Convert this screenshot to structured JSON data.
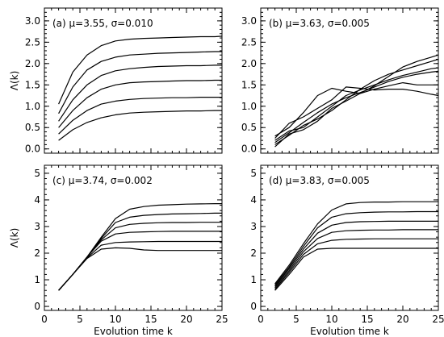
{
  "chart_data": [
    {
      "type": "line",
      "panel": "a",
      "annotation": "(a) μ=3.55, σ=0.010",
      "ylabel": "Λ(k)",
      "xlabel": "",
      "xlim": [
        0,
        25
      ],
      "ylim": [
        -0.1,
        3.3
      ],
      "xticks": [
        0,
        5,
        10,
        15,
        20,
        25
      ],
      "xtick_labels_shown": false,
      "yticks": [
        0.0,
        0.5,
        1.0,
        1.5,
        2.0,
        2.5,
        3.0
      ],
      "ytick_labels": [
        "0.0",
        "0.5",
        "1.0",
        "1.5",
        "2.0",
        "2.5",
        "3.0"
      ],
      "grid": false,
      "x": [
        2,
        4,
        6,
        8,
        10,
        12,
        14,
        16,
        18,
        20,
        22,
        24,
        25
      ],
      "series": [
        {
          "values": [
            1.05,
            1.8,
            2.2,
            2.42,
            2.53,
            2.57,
            2.59,
            2.6,
            2.61,
            2.62,
            2.63,
            2.63,
            2.64
          ]
        },
        {
          "values": [
            0.83,
            1.45,
            1.85,
            2.05,
            2.15,
            2.2,
            2.22,
            2.24,
            2.25,
            2.26,
            2.27,
            2.28,
            2.28
          ]
        },
        {
          "values": [
            0.65,
            1.15,
            1.5,
            1.72,
            1.83,
            1.88,
            1.91,
            1.93,
            1.94,
            1.95,
            1.95,
            1.96,
            1.96
          ]
        },
        {
          "values": [
            0.5,
            0.9,
            1.2,
            1.4,
            1.5,
            1.55,
            1.57,
            1.58,
            1.59,
            1.6,
            1.6,
            1.61,
            1.61
          ]
        },
        {
          "values": [
            0.35,
            0.67,
            0.9,
            1.05,
            1.12,
            1.16,
            1.18,
            1.19,
            1.2,
            1.2,
            1.21,
            1.21,
            1.21
          ]
        },
        {
          "values": [
            0.2,
            0.45,
            0.62,
            0.73,
            0.8,
            0.84,
            0.86,
            0.87,
            0.88,
            0.89,
            0.89,
            0.9,
            0.9
          ]
        }
      ]
    },
    {
      "type": "line",
      "panel": "b",
      "annotation": "(b) μ=3.63, σ=0.005",
      "ylabel": "",
      "xlabel": "",
      "xlim": [
        0,
        25
      ],
      "ylim": [
        -0.1,
        3.3
      ],
      "xticks": [
        0,
        5,
        10,
        15,
        20,
        25
      ],
      "xtick_labels_shown": false,
      "yticks": [
        0.0,
        0.5,
        1.0,
        1.5,
        2.0,
        2.5,
        3.0
      ],
      "ytick_labels": [
        "0.0",
        "0.5",
        "1.0",
        "1.5",
        "2.0",
        "2.5",
        "3.0"
      ],
      "grid": false,
      "x": [
        2,
        4,
        6,
        8,
        10,
        12,
        14,
        16,
        18,
        20,
        22,
        24,
        25
      ],
      "series": [
        {
          "values": [
            0.3,
            0.5,
            0.85,
            1.25,
            1.42,
            1.35,
            1.3,
            1.4,
            1.48,
            1.55,
            1.5,
            1.5,
            1.5
          ]
        },
        {
          "values": [
            0.25,
            0.6,
            0.75,
            0.95,
            1.15,
            1.45,
            1.42,
            1.38,
            1.4,
            1.4,
            1.35,
            1.28,
            1.25
          ]
        },
        {
          "values": [
            0.2,
            0.42,
            0.5,
            0.75,
            1.0,
            1.25,
            1.38,
            1.5,
            1.62,
            1.72,
            1.8,
            1.88,
            1.9
          ]
        },
        {
          "values": [
            0.15,
            0.38,
            0.62,
            0.85,
            1.05,
            1.2,
            1.32,
            1.45,
            1.58,
            1.68,
            1.75,
            1.8,
            1.82
          ]
        },
        {
          "values": [
            0.1,
            0.32,
            0.55,
            0.7,
            0.9,
            1.15,
            1.4,
            1.6,
            1.75,
            1.85,
            1.95,
            2.05,
            2.1
          ]
        },
        {
          "values": [
            0.05,
            0.35,
            0.45,
            0.65,
            0.95,
            1.12,
            1.3,
            1.48,
            1.7,
            1.92,
            2.05,
            2.15,
            2.2
          ]
        }
      ]
    },
    {
      "type": "line",
      "panel": "c",
      "annotation": "(c) μ=3.74, σ=0.002",
      "ylabel": "Λ(k)",
      "xlabel": "Evolution time k",
      "xlim": [
        0,
        25
      ],
      "ylim": [
        -0.15,
        5.3
      ],
      "xticks": [
        0,
        5,
        10,
        15,
        20,
        25
      ],
      "xtick_labels_shown": true,
      "xtick_labels": [
        "0",
        "5",
        "10",
        "15",
        "20",
        "25"
      ],
      "yticks": [
        0,
        1,
        2,
        3,
        4,
        5
      ],
      "ytick_labels": [
        "0",
        "1",
        "2",
        "3",
        "4",
        "5"
      ],
      "grid": false,
      "x": [
        2,
        4,
        6,
        8,
        10,
        12,
        14,
        16,
        18,
        20,
        22,
        24,
        25
      ],
      "series": [
        {
          "values": [
            0.6,
            1.2,
            1.85,
            2.6,
            3.3,
            3.65,
            3.75,
            3.8,
            3.82,
            3.84,
            3.85,
            3.86,
            3.86
          ]
        },
        {
          "values": [
            0.6,
            1.2,
            1.85,
            2.55,
            3.15,
            3.35,
            3.42,
            3.45,
            3.47,
            3.48,
            3.49,
            3.5,
            3.5
          ]
        },
        {
          "values": [
            0.6,
            1.2,
            1.85,
            2.5,
            2.95,
            3.08,
            3.12,
            3.14,
            3.15,
            3.15,
            3.16,
            3.16,
            3.16
          ]
        },
        {
          "values": [
            0.6,
            1.2,
            1.85,
            2.45,
            2.72,
            2.78,
            2.8,
            2.81,
            2.82,
            2.82,
            2.82,
            2.82,
            2.82
          ]
        },
        {
          "values": [
            0.6,
            1.2,
            1.82,
            2.3,
            2.4,
            2.42,
            2.43,
            2.44,
            2.44,
            2.44,
            2.44,
            2.44,
            2.44
          ]
        },
        {
          "values": [
            0.6,
            1.2,
            1.8,
            2.15,
            2.2,
            2.18,
            2.12,
            2.1,
            2.1,
            2.1,
            2.1,
            2.1,
            2.1
          ]
        }
      ]
    },
    {
      "type": "line",
      "panel": "d",
      "annotation": "(d) μ=3.83, σ=0.005",
      "ylabel": "",
      "xlabel": "Evolution time k",
      "xlim": [
        0,
        25
      ],
      "ylim": [
        -0.15,
        5.3
      ],
      "xticks": [
        0,
        5,
        10,
        15,
        20,
        25
      ],
      "xtick_labels_shown": true,
      "xtick_labels": [
        "0",
        "5",
        "10",
        "15",
        "20",
        "25"
      ],
      "yticks": [
        0,
        1,
        2,
        3,
        4,
        5
      ],
      "ytick_labels": [
        "0",
        "1",
        "2",
        "3",
        "4",
        "5"
      ],
      "grid": false,
      "x": [
        2,
        4,
        6,
        8,
        10,
        12,
        14,
        16,
        18,
        20,
        22,
        24,
        25
      ],
      "series": [
        {
          "values": [
            0.85,
            1.55,
            2.35,
            3.1,
            3.62,
            3.85,
            3.9,
            3.92,
            3.92,
            3.93,
            3.93,
            3.93,
            3.93
          ]
        },
        {
          "values": [
            0.8,
            1.48,
            2.25,
            2.95,
            3.35,
            3.48,
            3.52,
            3.54,
            3.55,
            3.55,
            3.56,
            3.56,
            3.56
          ]
        },
        {
          "values": [
            0.75,
            1.42,
            2.15,
            2.75,
            3.05,
            3.15,
            3.18,
            3.19,
            3.2,
            3.2,
            3.2,
            3.2,
            3.2
          ]
        },
        {
          "values": [
            0.7,
            1.35,
            2.05,
            2.55,
            2.78,
            2.84,
            2.86,
            2.87,
            2.87,
            2.88,
            2.88,
            2.88,
            2.88
          ]
        },
        {
          "values": [
            0.65,
            1.28,
            1.95,
            2.35,
            2.48,
            2.52,
            2.53,
            2.54,
            2.54,
            2.54,
            2.54,
            2.54,
            2.54
          ]
        },
        {
          "values": [
            0.6,
            1.2,
            1.85,
            2.15,
            2.18,
            2.18,
            2.18,
            2.18,
            2.18,
            2.18,
            2.18,
            2.18,
            2.18
          ]
        }
      ]
    }
  ]
}
